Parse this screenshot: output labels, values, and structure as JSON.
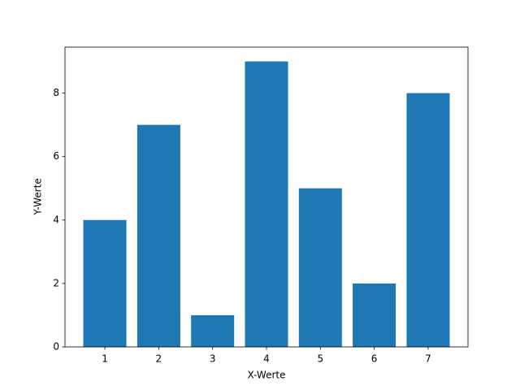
{
  "chart_data": {
    "type": "bar",
    "x_label": "X-Werte",
    "y_label": "Y-Werte",
    "x": [
      1,
      2,
      3,
      4,
      5,
      6,
      7
    ],
    "values": [
      4,
      7,
      1,
      9,
      5,
      2,
      8
    ],
    "color": "#1f77b4",
    "xlim": [
      0.26,
      7.74
    ],
    "xticks": [
      1,
      2,
      3,
      4,
      5,
      6,
      7
    ],
    "ylim": [
      0,
      9.45
    ],
    "yticks": [
      0,
      2,
      4,
      6,
      8
    ]
  }
}
